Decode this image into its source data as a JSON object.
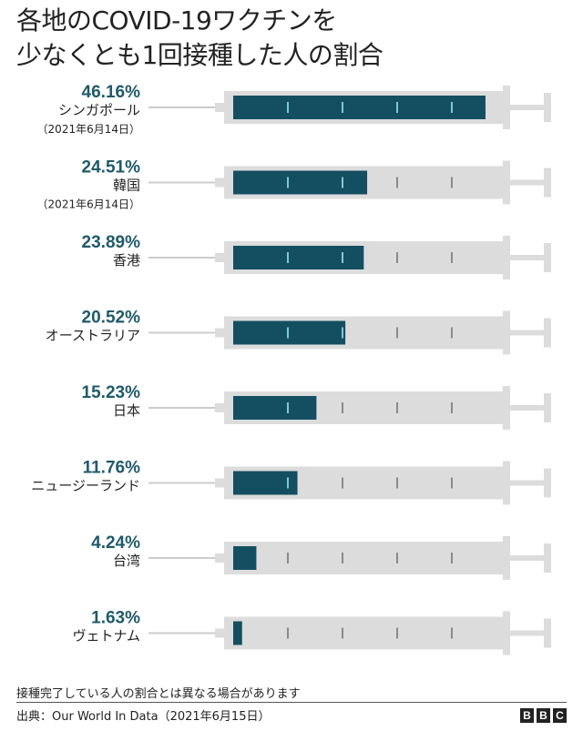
{
  "title": {
    "line1": "各地のCOVID-19ワクチンを",
    "line2": "少なくとも1回接種した人の割合"
  },
  "colors": {
    "value_text": "#1f5a6b",
    "fill": "#144f61",
    "barrel": "#dcdcdc",
    "tick_on_fill": "#7ec8d6",
    "tick_on_empty": "#8a8a8a",
    "needle": "#cccccc"
  },
  "chart_data": {
    "type": "bar",
    "style": "syringe",
    "title": "各地のCOVID-19ワクチンを少なくとも1回接種した人の割合",
    "xlim": [
      0,
      50
    ],
    "unit": "%",
    "categories": [
      {
        "label": "シンガポール",
        "note": "（2021年6月14日）"
      },
      {
        "label": "韓国",
        "note": "（2021年6月14日）"
      },
      {
        "label": "香港",
        "note": ""
      },
      {
        "label": "オーストラリア",
        "note": ""
      },
      {
        "label": "日本",
        "note": ""
      },
      {
        "label": "ニュージーランド",
        "note": ""
      },
      {
        "label": "台湾",
        "note": ""
      },
      {
        "label": "ヴェトナム",
        "note": ""
      }
    ],
    "values": [
      46.16,
      24.51,
      23.89,
      20.52,
      15.23,
      11.76,
      4.24,
      1.63
    ],
    "value_labels": [
      "46.16%",
      "24.51%",
      "23.89%",
      "20.52%",
      "15.23%",
      "11.76%",
      "4.24%",
      "1.63%"
    ],
    "tick_values": [
      10,
      20,
      30,
      40
    ]
  },
  "footnote": "接種完了している人の割合とは異なる場合があります",
  "source": "出典：Our World In Data（2021年6月15日）",
  "logo": [
    "B",
    "B",
    "C"
  ]
}
